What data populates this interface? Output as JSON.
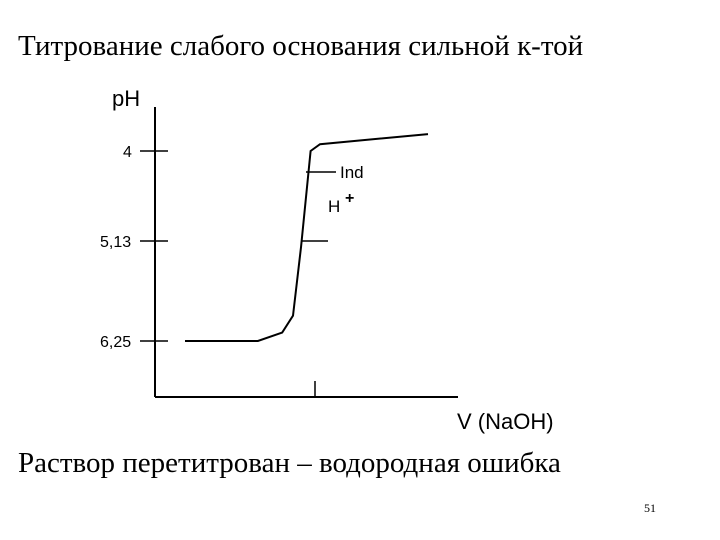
{
  "slide": {
    "title": "Титрование слабого основания сильной к-той",
    "subtitle": "Раствор перетитрован – водородная ошибка",
    "page_number": "51"
  },
  "chart_data": {
    "type": "line",
    "title": "Титрование слабого основания сильной к-той",
    "xlabel": "V (NaOH)",
    "ylabel": "pH",
    "y_ticks": [
      "4",
      "5,13",
      "6,25"
    ],
    "annotations": {
      "indicator": "Ind",
      "ion": "H",
      "ion_charge": "+"
    },
    "series": [
      {
        "values": [
          [
            0.0,
            6.25
          ],
          [
            0.27,
            6.25
          ],
          [
            0.36,
            6.15
          ],
          [
            0.4,
            5.95
          ],
          [
            0.43,
            5.13
          ],
          [
            0.465,
            4.0
          ],
          [
            0.5,
            3.92
          ],
          [
            0.9,
            3.8
          ]
        ]
      }
    ],
    "line_color": "#000000"
  }
}
